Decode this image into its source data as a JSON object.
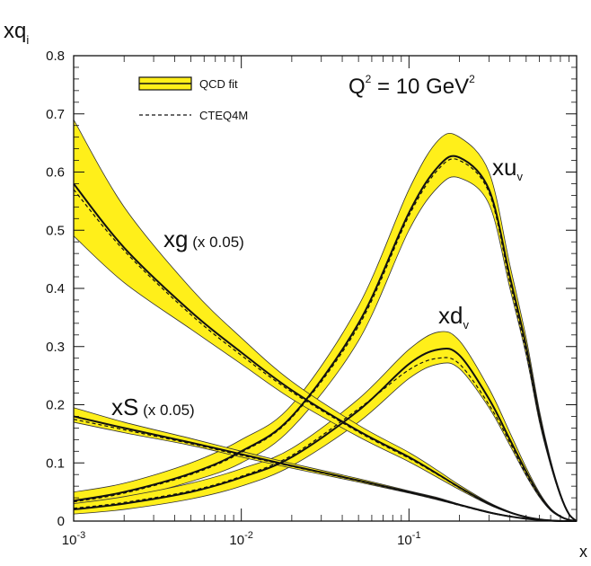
{
  "chart_data": {
    "type": "line",
    "x_scale": "log",
    "xlim": [
      0.001,
      1
    ],
    "ylim": [
      0,
      0.8
    ],
    "xlabel": "x",
    "ylabel": "xq",
    "ylabel_sub": "i",
    "annotation": {
      "main": "Q",
      "sup": "2",
      "rest": " = 10 GeV",
      "sup2": "2"
    },
    "x_ticks": [
      {
        "value": 0.001,
        "base": "10",
        "exp": "-3"
      },
      {
        "value": 0.01,
        "base": "10",
        "exp": "-2"
      },
      {
        "value": 0.1,
        "base": "10",
        "exp": "-1"
      },
      {
        "value": 1,
        "base": "",
        "exp": ""
      }
    ],
    "y_ticks": [
      0,
      0.1,
      0.2,
      0.3,
      0.4,
      0.5,
      0.6,
      0.7,
      0.8
    ],
    "y_tick_labels": [
      "0",
      "0.1",
      "0.2",
      "0.3",
      "0.4",
      "0.5",
      "0.6",
      "0.7",
      "0.8"
    ],
    "legend": {
      "placement": "top-left",
      "entries": [
        {
          "label": "QCD fit",
          "kind": "band"
        },
        {
          "label": "CTEQ4M",
          "kind": "dashed"
        }
      ]
    },
    "colors": {
      "band": "#ffef1a",
      "line": "#111111"
    },
    "x": [
      0.001,
      0.002,
      0.005,
      0.01,
      0.02,
      0.05,
      0.1,
      0.15,
      0.2,
      0.3,
      0.4,
      0.5,
      0.6,
      0.7,
      0.8,
      0.9,
      1.0
    ],
    "series": [
      {
        "label_main": "xu",
        "label_sub": "v",
        "label_scale": "",
        "central": [
          0.035,
          0.05,
          0.082,
          0.12,
          0.18,
          0.34,
          0.53,
          0.61,
          0.625,
          0.57,
          0.42,
          0.3,
          0.18,
          0.1,
          0.045,
          0.012,
          0.0
        ],
        "band_low": [
          0.025,
          0.038,
          0.068,
          0.1,
          0.16,
          0.31,
          0.5,
          0.575,
          0.59,
          0.545,
          0.4,
          0.285,
          0.17,
          0.095,
          0.043,
          0.011,
          0.0
        ],
        "band_high": [
          0.05,
          0.065,
          0.1,
          0.14,
          0.2,
          0.37,
          0.57,
          0.655,
          0.66,
          0.6,
          0.44,
          0.315,
          0.19,
          0.105,
          0.048,
          0.013,
          0.0
        ],
        "cteq": [
          0.033,
          0.048,
          0.08,
          0.118,
          0.178,
          0.335,
          0.525,
          0.605,
          0.62,
          0.565,
          0.41,
          0.29,
          0.175,
          0.098,
          0.044,
          0.012,
          0.0
        ]
      },
      {
        "label_main": "xd",
        "label_sub": "v",
        "label_scale": "",
        "central": [
          0.02,
          0.03,
          0.05,
          0.075,
          0.11,
          0.19,
          0.27,
          0.295,
          0.285,
          0.21,
          0.14,
          0.085,
          0.045,
          0.02,
          0.008,
          0.002,
          0.0
        ],
        "band_low": [
          0.012,
          0.02,
          0.038,
          0.06,
          0.095,
          0.17,
          0.245,
          0.27,
          0.262,
          0.195,
          0.13,
          0.078,
          0.041,
          0.018,
          0.007,
          0.002,
          0.0
        ],
        "band_high": [
          0.03,
          0.042,
          0.065,
          0.09,
          0.125,
          0.21,
          0.295,
          0.325,
          0.31,
          0.228,
          0.152,
          0.092,
          0.049,
          0.022,
          0.009,
          0.002,
          0.0
        ],
        "cteq": [
          0.022,
          0.032,
          0.052,
          0.077,
          0.113,
          0.193,
          0.26,
          0.28,
          0.27,
          0.2,
          0.135,
          0.08,
          0.043,
          0.019,
          0.008,
          0.002,
          0.0
        ]
      },
      {
        "label_main": "xg",
        "label_sub": "",
        "label_scale": "(x 0.05)",
        "central": [
          0.58,
          0.47,
          0.36,
          0.29,
          0.225,
          0.155,
          0.11,
          0.08,
          0.058,
          0.03,
          0.015,
          0.007,
          0.003,
          0.001,
          0.0,
          0.0,
          0.0
        ],
        "band_low": [
          0.49,
          0.41,
          0.33,
          0.27,
          0.21,
          0.145,
          0.102,
          0.074,
          0.054,
          0.028,
          0.014,
          0.0065,
          0.0028,
          0.001,
          0.0,
          0.0,
          0.0
        ],
        "band_high": [
          0.69,
          0.54,
          0.4,
          0.315,
          0.24,
          0.165,
          0.118,
          0.086,
          0.062,
          0.032,
          0.016,
          0.0075,
          0.0032,
          0.0012,
          0.0,
          0.0,
          0.0
        ],
        "cteq": [
          0.57,
          0.465,
          0.355,
          0.285,
          0.222,
          0.153,
          0.108,
          0.079,
          0.057,
          0.029,
          0.015,
          0.007,
          0.003,
          0.001,
          0.0,
          0.0,
          0.0
        ]
      },
      {
        "label_main": "xS",
        "label_sub": "",
        "label_scale": "(x 0.05)",
        "central": [
          0.18,
          0.16,
          0.135,
          0.115,
          0.095,
          0.07,
          0.05,
          0.038,
          0.028,
          0.015,
          0.008,
          0.004,
          0.002,
          0.0008,
          0.0002,
          0.0,
          0.0
        ],
        "band_low": [
          0.17,
          0.152,
          0.13,
          0.11,
          0.091,
          0.067,
          0.048,
          0.036,
          0.027,
          0.014,
          0.0075,
          0.0038,
          0.0018,
          0.0007,
          0.0002,
          0.0,
          0.0
        ],
        "band_high": [
          0.195,
          0.17,
          0.142,
          0.12,
          0.099,
          0.073,
          0.052,
          0.04,
          0.029,
          0.016,
          0.0085,
          0.0042,
          0.0022,
          0.0009,
          0.0002,
          0.0,
          0.0
        ],
        "cteq": [
          0.175,
          0.157,
          0.133,
          0.113,
          0.094,
          0.069,
          0.049,
          0.037,
          0.027,
          0.0145,
          0.0078,
          0.0039,
          0.0019,
          0.0008,
          0.0002,
          0.0,
          0.0
        ]
      }
    ]
  }
}
